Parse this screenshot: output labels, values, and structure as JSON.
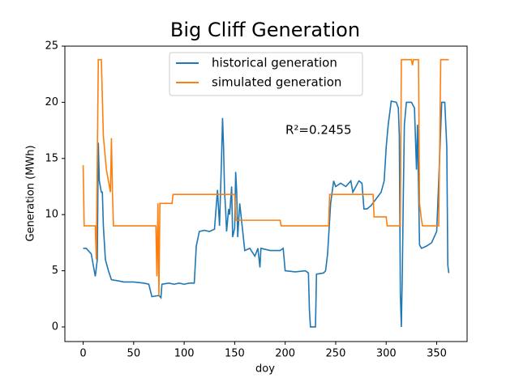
{
  "chart_data": {
    "type": "line",
    "title": "Big Cliff Generation",
    "xlabel": "doy",
    "ylabel": "Generation (MWh)",
    "annotation": "R²=0.2455",
    "xlim": [
      -18.1,
      380.1
    ],
    "ylim": [
      -1.3,
      25
    ],
    "xticks": [
      0,
      50,
      100,
      150,
      200,
      250,
      300,
      350
    ],
    "yticks": [
      0,
      5,
      10,
      15,
      20,
      25
    ],
    "legend": "upper center",
    "series": [
      {
        "name": "historical generation",
        "color": "#1f77b4",
        "x": [
          0,
          3,
          5,
          8,
          10,
          12,
          14,
          15,
          16,
          18,
          19,
          20,
          22,
          25,
          28,
          35,
          40,
          50,
          60,
          65,
          68,
          75,
          77,
          78,
          85,
          90,
          95,
          100,
          105,
          110,
          112,
          115,
          120,
          125,
          130,
          133,
          135,
          137,
          138,
          139,
          140,
          141,
          142,
          144,
          145,
          147,
          148,
          150,
          151,
          152,
          153,
          155,
          160,
          165,
          170,
          173,
          175,
          176,
          185,
          195,
          198,
          200,
          210,
          220,
          223,
          224,
          225,
          230,
          231,
          238,
          240,
          242,
          245,
          248,
          250,
          255,
          260,
          265,
          267,
          270,
          273,
          276,
          278,
          281,
          285,
          290,
          295,
          298,
          300,
          302,
          305,
          310,
          312,
          313,
          314,
          315,
          316,
          317,
          318,
          320,
          325,
          328,
          330,
          331,
          333,
          335,
          340,
          345,
          350,
          352,
          355,
          358,
          360,
          361,
          362
        ],
        "values": [
          7,
          7,
          6.8,
          6.5,
          5.5,
          4.5,
          6,
          16.4,
          13,
          12,
          12,
          9,
          6,
          5,
          4.2,
          4.1,
          4,
          4,
          3.9,
          3.8,
          2.7,
          2.8,
          2.6,
          3.8,
          3.9,
          3.8,
          3.9,
          3.8,
          3.9,
          3.9,
          7.2,
          8.5,
          8.6,
          8.5,
          8.7,
          12.2,
          9,
          15,
          18.6,
          16,
          12,
          10.5,
          8.5,
          10.5,
          10,
          12.5,
          8,
          8.8,
          13.8,
          12,
          8,
          11,
          6.8,
          7,
          6.3,
          7,
          5.3,
          7,
          6.8,
          6.8,
          7,
          5,
          4.9,
          5,
          4.8,
          1.5,
          0,
          0,
          4.7,
          4.8,
          5,
          6.5,
          11,
          13,
          12.5,
          12.8,
          12.5,
          13,
          12,
          12.5,
          13,
          12.8,
          10.5,
          10.5,
          10.8,
          11.4,
          12,
          13,
          16,
          18,
          20.1,
          20,
          19.5,
          17,
          3,
          0,
          5,
          12,
          18,
          20,
          20,
          19.5,
          14,
          18,
          7.3,
          7,
          7.2,
          7.5,
          8.5,
          13,
          20,
          20,
          16,
          5.5,
          4.8
        ]
      },
      {
        "name": "simulated generation",
        "color": "#ff7f0e",
        "x": [
          0,
          1,
          10,
          12,
          13,
          15,
          18,
          20,
          23,
          25,
          27,
          28,
          29,
          30,
          72,
          73,
          74,
          75,
          76,
          88,
          89,
          150,
          151,
          195,
          196,
          243,
          244,
          287,
          288,
          300,
          301,
          314,
          315,
          325,
          326,
          327,
          332,
          333,
          335,
          336,
          352,
          354,
          362
        ],
        "values": [
          14.4,
          9,
          9,
          9,
          6,
          23.8,
          23.8,
          17,
          14,
          13,
          12,
          16.8,
          12,
          9,
          9,
          4.5,
          11,
          2.8,
          11,
          11,
          11.8,
          11.8,
          9.5,
          9.5,
          9,
          9,
          11.8,
          11.8,
          9.8,
          9.8,
          9,
          9,
          23.8,
          23.8,
          23.3,
          23.8,
          23.8,
          11,
          9.5,
          9,
          9,
          23.8,
          23.8
        ]
      }
    ]
  }
}
